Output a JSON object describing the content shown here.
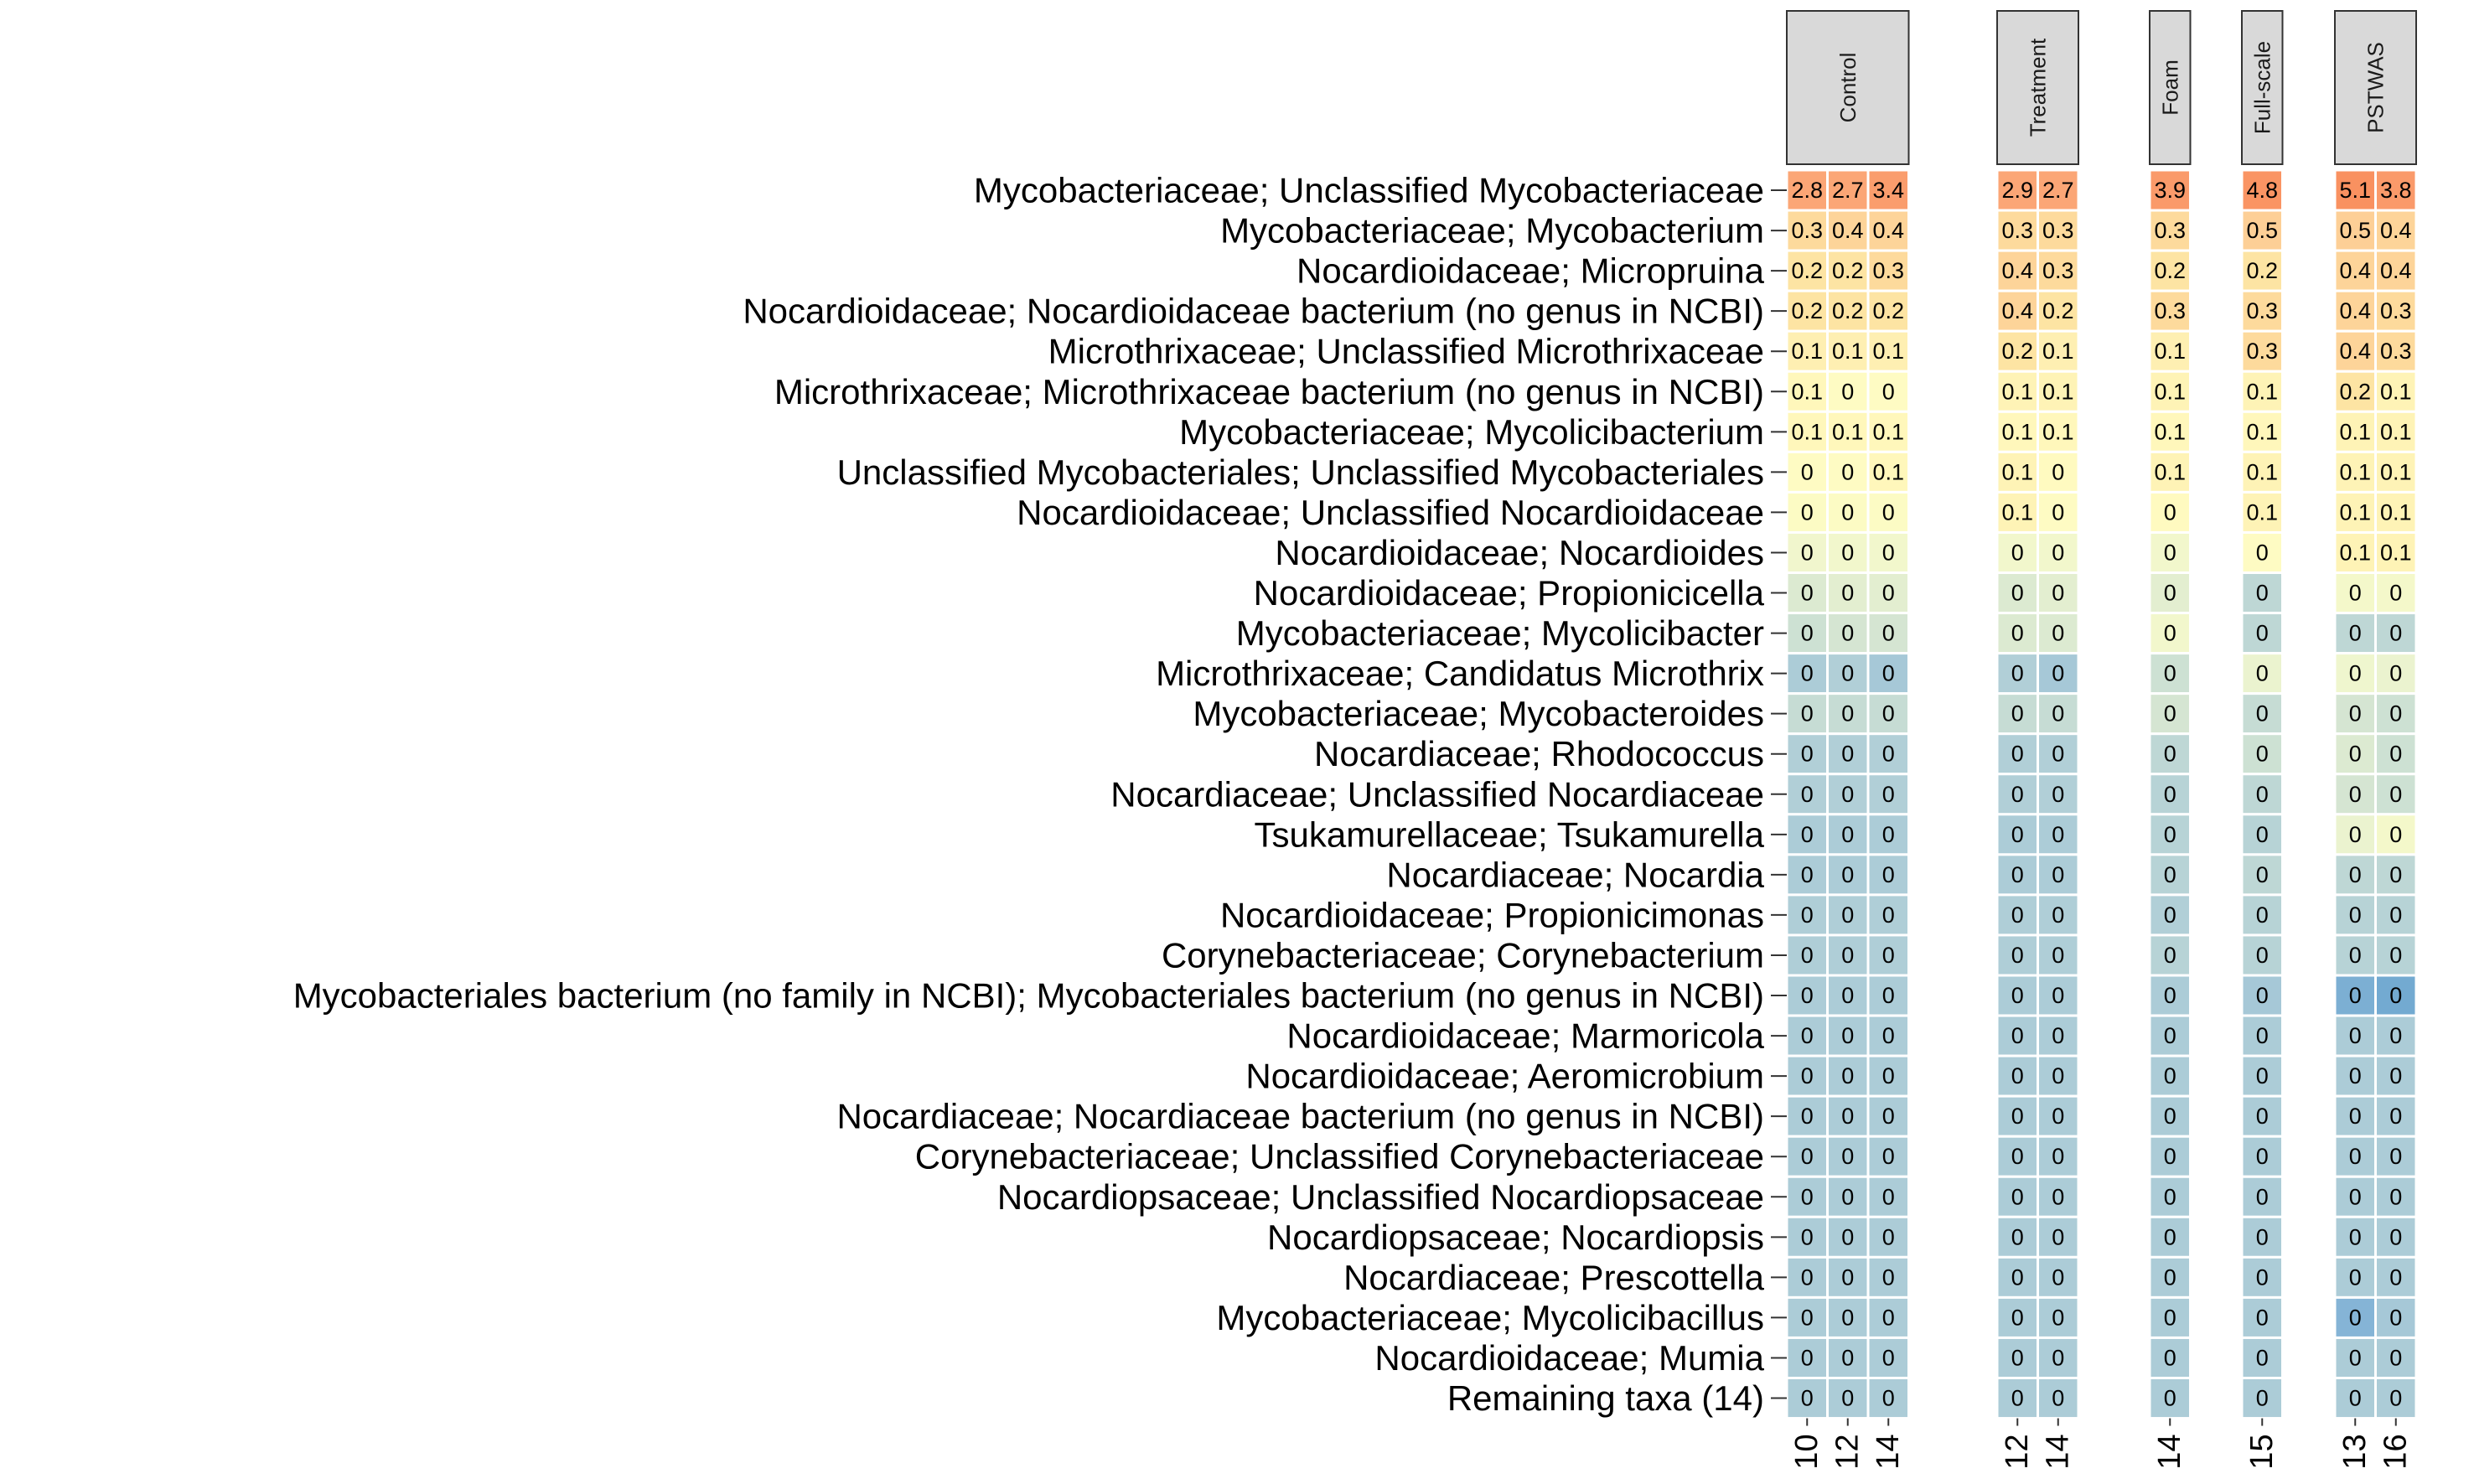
{
  "chart_data": {
    "type": "heatmap",
    "panels": [
      {
        "name": "Control",
        "columns": [
          "10",
          "12",
          "14"
        ]
      },
      {
        "name": "Treatment",
        "columns": [
          "12",
          "14"
        ]
      },
      {
        "name": "Foam",
        "columns": [
          "14"
        ]
      },
      {
        "name": "Full-scale",
        "columns": [
          "15"
        ]
      },
      {
        "name": "PSTWAS",
        "columns": [
          "13",
          "16"
        ]
      }
    ],
    "rows": [
      "Mycobacteriaceae; Unclassified Mycobacteriaceae",
      "Mycobacteriaceae; Mycobacterium",
      "Nocardioidaceae; Micropruina",
      "Nocardioidaceae; Nocardioidaceae bacterium (no genus in NCBI)",
      "Microthrixaceae; Unclassified Microthrixaceae",
      "Microthrixaceae; Microthrixaceae bacterium (no genus in NCBI)",
      "Mycobacteriaceae; Mycolicibacterium",
      "Unclassified Mycobacteriales; Unclassified Mycobacteriales",
      "Nocardioidaceae; Unclassified Nocardioidaceae",
      "Nocardioidaceae; Nocardioides",
      "Nocardioidaceae; Propionicicella",
      "Mycobacteriaceae; Mycolicibacter",
      "Microthrixaceae; Candidatus Microthrix",
      "Mycobacteriaceae; Mycobacteroides",
      "Nocardiaceae; Rhodococcus",
      "Nocardiaceae; Unclassified Nocardiaceae",
      "Tsukamurellaceae; Tsukamurella",
      "Nocardiaceae; Nocardia",
      "Nocardioidaceae; Propionicimonas",
      "Corynebacteriaceae; Corynebacterium",
      "Mycobacteriales bacterium (no family in NCBI); Mycobacteriales bacterium (no genus in NCBI)",
      "Nocardioidaceae; Marmoricola",
      "Nocardioidaceae; Aeromicrobium",
      "Nocardiaceae; Nocardiaceae bacterium (no genus in NCBI)",
      "Corynebacteriaceae; Unclassified Corynebacteriaceae",
      "Nocardiopsaceae; Unclassified Nocardiopsaceae",
      "Nocardiopsaceae; Nocardiopsis",
      "Nocardiaceae; Prescottella",
      "Mycobacteriaceae; Mycolicibacillus",
      "Nocardioidaceae; Mumia",
      "Remaining taxa (14)"
    ],
    "values": [
      [
        2.8,
        2.7,
        3.4,
        2.9,
        2.7,
        3.9,
        4.8,
        5.1,
        3.8
      ],
      [
        0.3,
        0.4,
        0.4,
        0.3,
        0.3,
        0.3,
        0.5,
        0.5,
        0.4
      ],
      [
        0.2,
        0.2,
        0.3,
        0.4,
        0.3,
        0.2,
        0.2,
        0.4,
        0.4
      ],
      [
        0.2,
        0.2,
        0.2,
        0.4,
        0.2,
        0.3,
        0.3,
        0.4,
        0.3
      ],
      [
        0.1,
        0.1,
        0.1,
        0.2,
        0.1,
        0.1,
        0.3,
        0.4,
        0.3
      ],
      [
        0.1,
        0,
        0,
        0.1,
        0.1,
        0.1,
        0.1,
        0.2,
        0.1
      ],
      [
        0.1,
        0.1,
        0.1,
        0.1,
        0.1,
        0.1,
        0.1,
        0.1,
        0.1
      ],
      [
        0,
        0,
        0.1,
        0.1,
        0,
        0.1,
        0.1,
        0.1,
        0.1
      ],
      [
        0,
        0,
        0,
        0.1,
        0,
        0,
        0.1,
        0.1,
        0.1
      ],
      [
        0,
        0,
        0,
        0,
        0,
        0,
        0,
        0.1,
        0.1
      ],
      [
        0,
        0,
        0,
        0,
        0,
        0,
        0,
        0,
        0
      ],
      [
        0,
        0,
        0,
        0,
        0,
        0,
        0,
        0,
        0
      ],
      [
        0,
        0,
        0,
        0,
        0,
        0,
        0,
        0,
        0
      ],
      [
        0,
        0,
        0,
        0,
        0,
        0,
        0,
        0,
        0
      ],
      [
        0,
        0,
        0,
        0,
        0,
        0,
        0,
        0,
        0
      ],
      [
        0,
        0,
        0,
        0,
        0,
        0,
        0,
        0,
        0
      ],
      [
        0,
        0,
        0,
        0,
        0,
        0,
        0,
        0,
        0
      ],
      [
        0,
        0,
        0,
        0,
        0,
        0,
        0,
        0,
        0
      ],
      [
        0,
        0,
        0,
        0,
        0,
        0,
        0,
        0,
        0
      ],
      [
        0,
        0,
        0,
        0,
        0,
        0,
        0,
        0,
        0
      ],
      [
        0,
        0,
        0,
        0,
        0,
        0,
        0,
        0,
        0
      ],
      [
        0,
        0,
        0,
        0,
        0,
        0,
        0,
        0,
        0
      ],
      [
        0,
        0,
        0,
        0,
        0,
        0,
        0,
        0,
        0
      ],
      [
        0,
        0,
        0,
        0,
        0,
        0,
        0,
        0,
        0
      ],
      [
        0,
        0,
        0,
        0,
        0,
        0,
        0,
        0,
        0
      ],
      [
        0,
        0,
        0,
        0,
        0,
        0,
        0,
        0,
        0
      ],
      [
        0,
        0,
        0,
        0,
        0,
        0,
        0,
        0,
        0
      ],
      [
        0,
        0,
        0,
        0,
        0,
        0,
        0,
        0,
        0
      ],
      [
        0,
        0,
        0,
        0,
        0,
        0,
        0,
        0,
        0
      ],
      [
        0,
        0,
        0,
        0,
        0,
        0,
        0,
        0,
        0
      ],
      [
        0,
        0,
        0,
        0,
        0,
        0,
        0,
        0,
        0
      ]
    ],
    "shading": [
      [
        0.92,
        0.92,
        0.95,
        0.92,
        0.92,
        0.96,
        0.98,
        0.99,
        0.96
      ],
      [
        0.74,
        0.76,
        0.76,
        0.74,
        0.74,
        0.74,
        0.78,
        0.78,
        0.76
      ],
      [
        0.7,
        0.7,
        0.74,
        0.76,
        0.74,
        0.7,
        0.7,
        0.76,
        0.76
      ],
      [
        0.7,
        0.7,
        0.7,
        0.76,
        0.7,
        0.74,
        0.74,
        0.76,
        0.74
      ],
      [
        0.64,
        0.64,
        0.64,
        0.7,
        0.64,
        0.64,
        0.74,
        0.76,
        0.74
      ],
      [
        0.6,
        0.56,
        0.56,
        0.62,
        0.62,
        0.62,
        0.62,
        0.7,
        0.62
      ],
      [
        0.6,
        0.6,
        0.6,
        0.6,
        0.6,
        0.6,
        0.6,
        0.62,
        0.62
      ],
      [
        0.56,
        0.56,
        0.6,
        0.62,
        0.58,
        0.62,
        0.62,
        0.62,
        0.62
      ],
      [
        0.55,
        0.55,
        0.55,
        0.62,
        0.56,
        0.58,
        0.62,
        0.62,
        0.62
      ],
      [
        0.45,
        0.46,
        0.46,
        0.46,
        0.46,
        0.46,
        0.56,
        0.62,
        0.62
      ],
      [
        0.38,
        0.4,
        0.4,
        0.38,
        0.4,
        0.4,
        0.3,
        0.48,
        0.48
      ],
      [
        0.34,
        0.36,
        0.36,
        0.38,
        0.38,
        0.46,
        0.3,
        0.3,
        0.3
      ],
      [
        0.24,
        0.26,
        0.22,
        0.26,
        0.22,
        0.34,
        0.42,
        0.44,
        0.42
      ],
      [
        0.32,
        0.32,
        0.32,
        0.32,
        0.32,
        0.36,
        0.32,
        0.36,
        0.34
      ],
      [
        0.26,
        0.26,
        0.26,
        0.26,
        0.26,
        0.3,
        0.34,
        0.38,
        0.34
      ],
      [
        0.26,
        0.26,
        0.26,
        0.26,
        0.26,
        0.28,
        0.3,
        0.36,
        0.34
      ],
      [
        0.24,
        0.24,
        0.24,
        0.24,
        0.24,
        0.28,
        0.28,
        0.42,
        0.48
      ],
      [
        0.24,
        0.24,
        0.24,
        0.24,
        0.24,
        0.28,
        0.3,
        0.3,
        0.3
      ],
      [
        0.25,
        0.25,
        0.25,
        0.25,
        0.25,
        0.26,
        0.28,
        0.28,
        0.28
      ],
      [
        0.25,
        0.25,
        0.25,
        0.25,
        0.25,
        0.28,
        0.28,
        0.28,
        0.28
      ],
      [
        0.24,
        0.24,
        0.24,
        0.24,
        0.24,
        0.24,
        0.22,
        0.1,
        0.08
      ],
      [
        0.24,
        0.24,
        0.24,
        0.24,
        0.24,
        0.24,
        0.24,
        0.24,
        0.24
      ],
      [
        0.24,
        0.24,
        0.24,
        0.24,
        0.24,
        0.24,
        0.24,
        0.24,
        0.24
      ],
      [
        0.24,
        0.24,
        0.24,
        0.24,
        0.24,
        0.24,
        0.24,
        0.24,
        0.24
      ],
      [
        0.24,
        0.24,
        0.24,
        0.24,
        0.24,
        0.24,
        0.24,
        0.24,
        0.24
      ],
      [
        0.24,
        0.24,
        0.24,
        0.24,
        0.24,
        0.24,
        0.24,
        0.24,
        0.24
      ],
      [
        0.24,
        0.24,
        0.24,
        0.24,
        0.24,
        0.24,
        0.24,
        0.24,
        0.24
      ],
      [
        0.24,
        0.24,
        0.24,
        0.24,
        0.24,
        0.24,
        0.24,
        0.24,
        0.24
      ],
      [
        0.24,
        0.24,
        0.24,
        0.24,
        0.24,
        0.24,
        0.24,
        0.12,
        0.22
      ],
      [
        0.24,
        0.24,
        0.24,
        0.24,
        0.24,
        0.24,
        0.24,
        0.24,
        0.24
      ],
      [
        0.24,
        0.24,
        0.24,
        0.24,
        0.24,
        0.24,
        0.24,
        0.24,
        0.24
      ]
    ],
    "palette": [
      "#4f95c6",
      "#8fbad9",
      "#b9d4d6",
      "#eef5cf",
      "#fffcc2",
      "#fde1a0",
      "#fdb98a",
      "#f98e5d"
    ],
    "colors": {
      "strip_fill": "#d9d9d9",
      "strip_border": "#333333",
      "cell_border": "#ffffff",
      "text": "#000000"
    },
    "grid": false,
    "legend": "none"
  }
}
